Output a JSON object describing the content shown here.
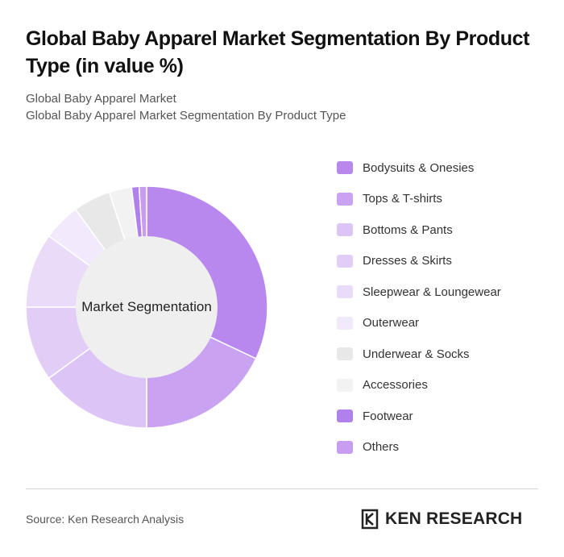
{
  "header": {
    "title": "Global Baby Apparel Market Segmentation By Product Type (in value %)",
    "subtitle_1": "Global Baby Apparel Market",
    "subtitle_2": "Global Baby Apparel Market Segmentation By Product Type"
  },
  "chart_data": {
    "type": "pie",
    "style": "donut",
    "center_label": "Market Segmentation",
    "legend_position": "right",
    "categories": [
      "Bodysuits & Onesies",
      "Tops & T-shirts",
      "Bottoms & Pants",
      "Dresses & Skirts",
      "Sleepwear & Loungewear",
      "Outerwear",
      "Underwear & Socks",
      "Accessories",
      "Footwear",
      "Others"
    ],
    "values": [
      32,
      18,
      15,
      10,
      10,
      5,
      5,
      3,
      1,
      1
    ],
    "colors": [
      "#b888ee",
      "#c9a2f1",
      "#dcc4f6",
      "#e2cdf7",
      "#eadbf9",
      "#f2eafc",
      "#e8e8e8",
      "#f2f2f2",
      "#b080ec",
      "#c89cf0"
    ]
  },
  "footer": {
    "source": "Source: Ken Research Analysis",
    "logo_text": "KEN RESEARCH"
  }
}
